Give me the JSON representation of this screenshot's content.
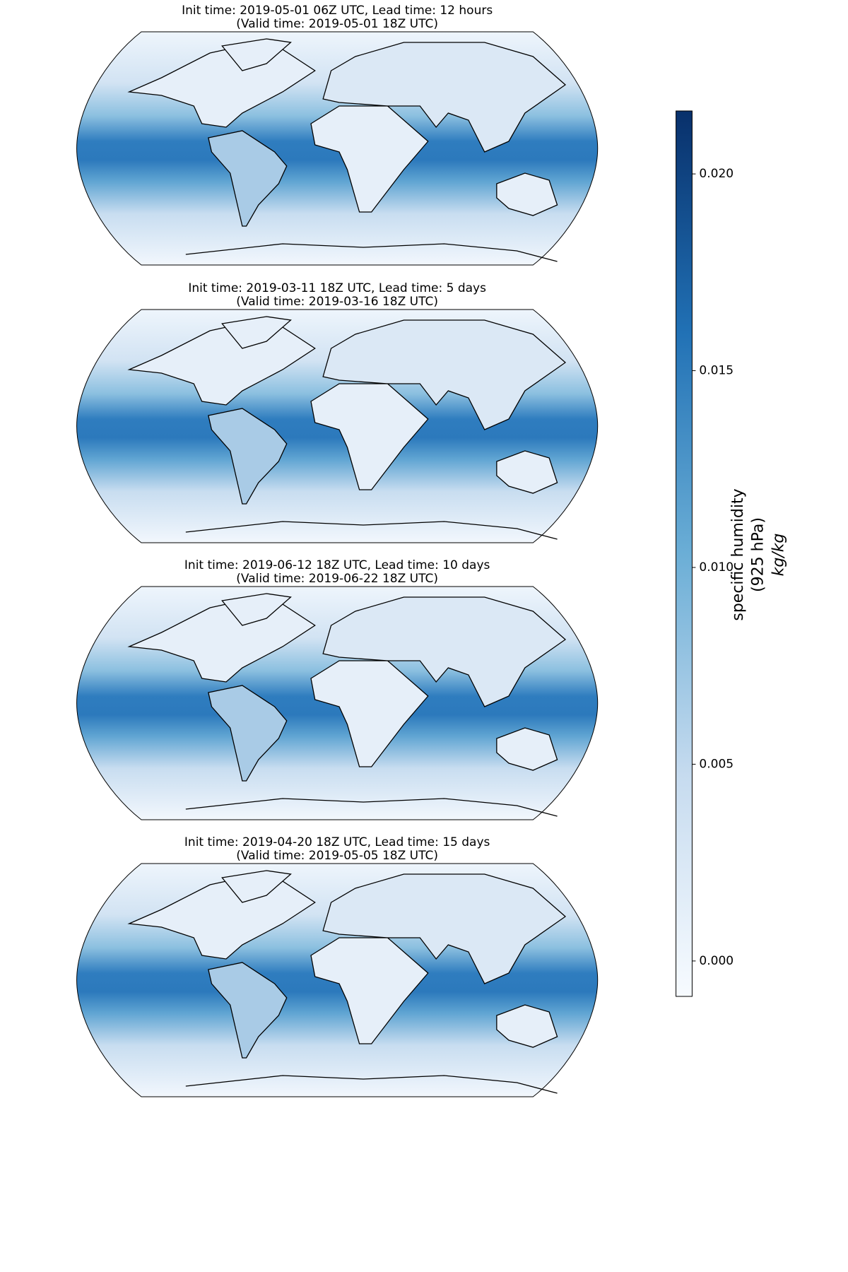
{
  "maps": [
    {
      "title": [
        "Init time: 2019-05-01 06Z UTC, Lead time: 12 hours",
        "(Valid time: 2019-05-01 18Z UTC)"
      ]
    },
    {
      "title": [
        "Init time: 2019-03-11 18Z UTC, Lead time: 5 days",
        "(Valid time: 2019-03-16 18Z UTC)"
      ]
    },
    {
      "title": [
        "Init time: 2019-06-12 18Z UTC, Lead time: 10 days",
        "(Valid time: 2019-06-22 18Z UTC)"
      ]
    },
    {
      "title": [
        "Init time: 2019-04-20 18Z UTC, Lead time: 15 days",
        "(Valid time: 2019-05-05 18Z UTC)"
      ]
    }
  ],
  "colorbar": {
    "label": [
      "specific humidity",
      "(925 hPa)",
      "kg/kg"
    ],
    "clim": [
      -0.0009,
      0.0216
    ],
    "ticks": [
      {
        "value": 0,
        "label": "0.000"
      },
      {
        "value": 0.005,
        "label": "0.005"
      },
      {
        "value": 0.01,
        "label": "0.010"
      },
      {
        "value": 0.015,
        "label": "0.015"
      },
      {
        "value": 0.02,
        "label": "0.020"
      }
    ]
  }
}
